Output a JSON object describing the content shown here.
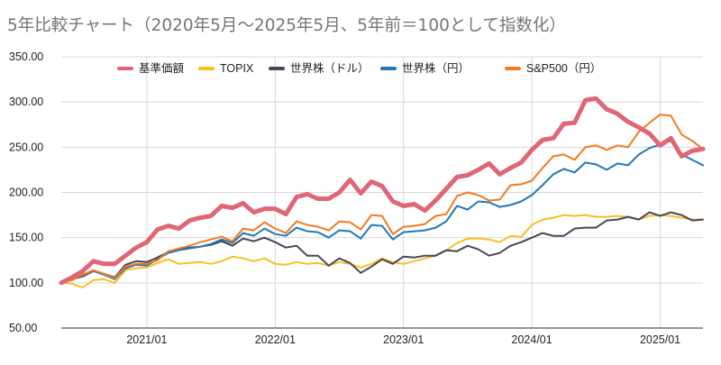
{
  "chart_data": {
    "type": "line",
    "title": "5年比較チャート（2020年5月～2025年5月、5年前＝100として指数化）",
    "xlabel": "",
    "ylabel": "",
    "ylim": [
      50,
      350
    ],
    "yticks": [
      "50.00",
      "100.00",
      "150.00",
      "200.00",
      "250.00",
      "300.00",
      "350.00"
    ],
    "x_tick_labels": [
      "2021/01",
      "2022/01",
      "2023/01",
      "2024/01",
      "2025/01"
    ],
    "grid": true,
    "legend_position": "top",
    "x_start": "2020/05",
    "x_end": "2025/05",
    "series": [
      {
        "name": "基準価額",
        "color": "#e06677",
        "values": [
          100,
          106,
          113,
          124,
          121,
          121,
          130,
          139,
          145,
          159,
          163,
          160,
          169,
          172,
          174,
          185,
          183,
          188,
          178,
          182,
          182,
          176,
          195,
          198,
          193,
          193,
          200,
          214,
          199,
          212,
          207,
          190,
          185,
          187,
          180,
          191,
          204,
          217,
          219,
          225,
          232,
          220,
          227,
          233,
          247,
          258,
          260,
          276,
          277,
          302,
          304,
          292,
          287,
          278,
          272,
          265,
          252,
          260,
          240,
          246,
          248
        ]
      },
      {
        "name": "TOPIX",
        "color": "#f6c026",
        "values": [
          100,
          99,
          95,
          103,
          104,
          100,
          114,
          116,
          117,
          122,
          126,
          121,
          122,
          123,
          121,
          124,
          129,
          127,
          124,
          127,
          121,
          120,
          123,
          121,
          122,
          119,
          123,
          121,
          117,
          121,
          127,
          123,
          121,
          124,
          127,
          130,
          136,
          144,
          149,
          149,
          148,
          145,
          152,
          151,
          164,
          170,
          172,
          175,
          174,
          175,
          173,
          173,
          174,
          173,
          170,
          174,
          175,
          174,
          172,
          170,
          170
        ]
      },
      {
        "name": "世界株（ドル）",
        "color": "#4a4458",
        "values": [
          100,
          104,
          107,
          113,
          110,
          106,
          120,
          124,
          123,
          128,
          134,
          137,
          139,
          140,
          142,
          146,
          141,
          149,
          146,
          150,
          145,
          139,
          141,
          130,
          130,
          119,
          127,
          122,
          111,
          118,
          126,
          121,
          129,
          128,
          130,
          130,
          136,
          135,
          141,
          137,
          130,
          133,
          141,
          145,
          150,
          155,
          152,
          152,
          160,
          161,
          161,
          169,
          170,
          173,
          170,
          178,
          174,
          178,
          175,
          169,
          170
        ]
      },
      {
        "name": "世界株（円）",
        "color": "#2178b5",
        "values": [
          100,
          104,
          108,
          113,
          109,
          104,
          116,
          120,
          119,
          126,
          133,
          136,
          138,
          140,
          143,
          148,
          144,
          155,
          152,
          160,
          154,
          152,
          161,
          157,
          156,
          150,
          158,
          157,
          149,
          164,
          163,
          148,
          156,
          157,
          158,
          161,
          168,
          185,
          181,
          190,
          189,
          184,
          186,
          190,
          197,
          208,
          220,
          226,
          222,
          233,
          231,
          225,
          232,
          230,
          242,
          249,
          253,
          257,
          242,
          236,
          230
        ]
      },
      {
        "name": "S&P500（円）",
        "color": "#f47a20",
        "values": [
          100,
          103,
          109,
          114,
          110,
          105,
          118,
          121,
          121,
          125,
          135,
          138,
          141,
          145,
          148,
          151,
          146,
          160,
          158,
          167,
          160,
          155,
          168,
          164,
          162,
          158,
          168,
          167,
          159,
          175,
          174,
          154,
          162,
          163,
          165,
          174,
          176,
          196,
          200,
          197,
          191,
          192,
          208,
          209,
          213,
          227,
          240,
          242,
          236,
          250,
          252,
          247,
          252,
          250,
          267,
          277,
          286,
          285,
          264,
          257,
          248
        ]
      }
    ]
  }
}
